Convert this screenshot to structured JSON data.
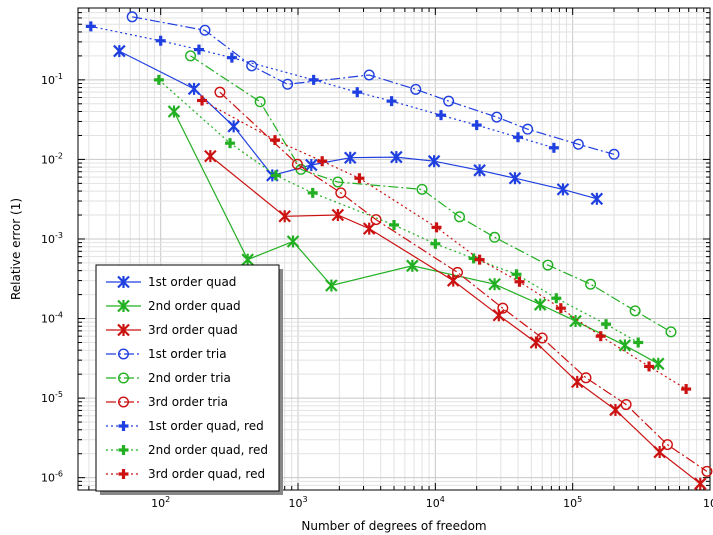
{
  "chart_data": {
    "type": "line",
    "xlabel": "Number of degrees of freedom",
    "ylabel": "Relative error (1)",
    "xscale": "log",
    "yscale": "log",
    "xlim": [
      25,
      1000000
    ],
    "ylim": [
      7e-07,
      0.8
    ],
    "grid": true,
    "legend_position": "bottom-left",
    "x_ticks": [
      {
        "value": 100,
        "base": "10",
        "exp": "2"
      },
      {
        "value": 1000,
        "base": "10",
        "exp": "3"
      },
      {
        "value": 10000,
        "base": "10",
        "exp": "4"
      },
      {
        "value": 100000,
        "base": "10",
        "exp": "5"
      },
      {
        "value": 1000000,
        "base": "10",
        "exp": ""
      }
    ],
    "y_ticks": [
      {
        "value": 0.1,
        "base": "10",
        "exp": "-1"
      },
      {
        "value": 0.01,
        "base": "10",
        "exp": "-2"
      },
      {
        "value": 0.001,
        "base": "10",
        "exp": "-3"
      },
      {
        "value": 0.0001,
        "base": "10",
        "exp": "-4"
      },
      {
        "value": 1e-05,
        "base": "10",
        "exp": "-5"
      },
      {
        "value": 1e-06,
        "base": "10",
        "exp": "-6"
      }
    ],
    "series": [
      {
        "name": "1st order quad",
        "color": "#1f3fe0",
        "dash": "solid",
        "marker": "asterisk",
        "x": [
          50,
          175,
          340,
          650,
          1250,
          2400,
          5200,
          9800,
          21000,
          38000,
          85000,
          150000
        ],
        "y": [
          0.23,
          0.077,
          0.026,
          0.0063,
          0.0085,
          0.0105,
          0.0107,
          0.0095,
          0.0073,
          0.0058,
          0.0042,
          0.0032
        ]
      },
      {
        "name": "2nd order quad",
        "color": "#22b022",
        "dash": "solid",
        "marker": "asterisk",
        "x": [
          125,
          430,
          920,
          1750,
          6800,
          27000,
          58000,
          105000,
          240000,
          420000
        ],
        "y": [
          0.04,
          0.00055,
          0.00093,
          0.00026,
          0.00046,
          0.00027,
          0.00015,
          9.3e-05,
          4.6e-05,
          2.7e-05
        ]
      },
      {
        "name": "3rd order quad",
        "color": "#cc1111",
        "dash": "solid",
        "marker": "asterisk",
        "x": [
          230,
          800,
          1950,
          3300,
          13500,
          29000,
          54000,
          108000,
          205000,
          430000,
          850000
        ],
        "y": [
          0.011,
          0.00193,
          0.002,
          0.00135,
          0.0003,
          0.00011,
          5e-05,
          1.6e-05,
          7.1e-06,
          2.1e-06,
          8.4e-07
        ]
      },
      {
        "name": "1st order tria",
        "color": "#1f3fe0",
        "dash": "longdash",
        "marker": "circle",
        "x": [
          62,
          210,
          460,
          840,
          3300,
          7200,
          12500,
          28000,
          47000,
          110000,
          200000
        ],
        "y": [
          0.62,
          0.42,
          0.15,
          0.088,
          0.115,
          0.076,
          0.054,
          0.034,
          0.024,
          0.0155,
          0.0116
        ]
      },
      {
        "name": "2nd order tria",
        "color": "#22b022",
        "dash": "longdash",
        "marker": "circle",
        "x": [
          165,
          530,
          1050,
          1950,
          8000,
          15000,
          27000,
          66000,
          135000,
          285000,
          520000
        ],
        "y": [
          0.2,
          0.053,
          0.0075,
          0.0052,
          0.0042,
          0.0019,
          0.00105,
          0.00047,
          0.00027,
          0.000125,
          6.8e-05
        ]
      },
      {
        "name": "3rd order tria",
        "color": "#cc1111",
        "dash": "longdash",
        "marker": "circle",
        "x": [
          270,
          990,
          2050,
          3700,
          14500,
          31000,
          60000,
          125000,
          245000,
          490000,
          950000
        ],
        "y": [
          0.07,
          0.0087,
          0.0038,
          0.00175,
          0.00038,
          0.000135,
          5.7e-05,
          1.8e-05,
          8.3e-06,
          2.6e-06,
          1.2e-06
        ]
      },
      {
        "name": "1st order quad, red",
        "color": "#1f3fe0",
        "dash": "dot",
        "marker": "plus",
        "x": [
          31,
          100,
          190,
          330,
          1300,
          2700,
          4800,
          11000,
          20000,
          40000,
          73000
        ],
        "y": [
          0.47,
          0.31,
          0.24,
          0.19,
          0.1,
          0.07,
          0.054,
          0.036,
          0.027,
          0.019,
          0.014
        ]
      },
      {
        "name": "2nd order quad, red",
        "color": "#22b022",
        "dash": "dot",
        "marker": "plus",
        "x": [
          97,
          320,
          690,
          1280,
          5000,
          10000,
          19000,
          39000,
          76000,
          175000,
          300000
        ],
        "y": [
          0.1,
          0.016,
          0.0063,
          0.0038,
          0.0015,
          0.00087,
          0.00057,
          0.00036,
          0.00018,
          8.5e-05,
          5e-05
        ]
      },
      {
        "name": "3rd order quad, red",
        "color": "#cc1111",
        "dash": "dot",
        "marker": "plus",
        "x": [
          200,
          680,
          1500,
          2800,
          10200,
          21000,
          41000,
          82000,
          160000,
          360000,
          670000
        ],
        "y": [
          0.055,
          0.0175,
          0.0095,
          0.0058,
          0.0014,
          0.00055,
          0.00029,
          0.000135,
          6e-05,
          2.5e-05,
          1.3e-05
        ]
      }
    ]
  }
}
